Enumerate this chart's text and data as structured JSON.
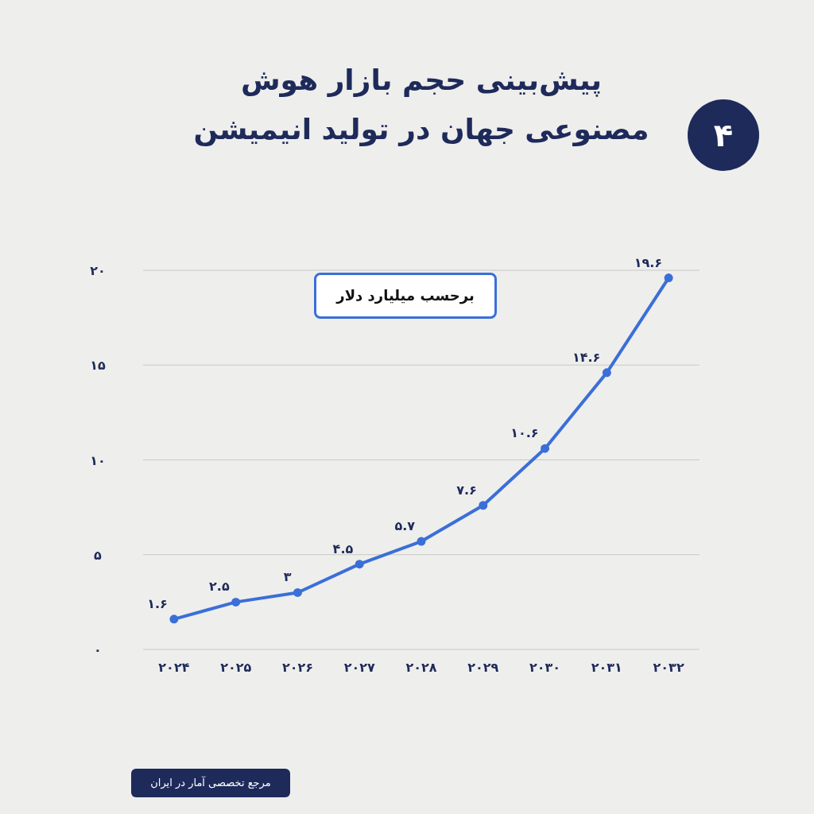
{
  "chart_data": {
    "type": "line",
    "title": "پیش‌بینی حجم بازار هوش مصنوعی جهان در تولید انیمیشن",
    "categories": [
      "۲۰۲۴",
      "۲۰۲۵",
      "۲۰۲۶",
      "۲۰۲۷",
      "۲۰۲۸",
      "۲۰۲۹",
      "۲۰۳۰",
      "۲۰۳۱",
      "۲۰۳۲"
    ],
    "values": [
      1.6,
      2.5,
      3,
      4.5,
      5.7,
      7.6,
      10.6,
      14.6,
      19.6
    ],
    "value_labels": [
      "۱.۶",
      "۲.۵",
      "۳",
      "۴.۵",
      "۵.۷",
      "۷.۶",
      "۱۰.۶",
      "۱۴.۶",
      "۱۹.۶"
    ],
    "color": "#3a6fd8",
    "marker": "circle",
    "line_style": "solid",
    "grid": "y",
    "ylim": [
      0,
      20
    ],
    "yticks": [
      {
        "value": 0,
        "label": "۰"
      },
      {
        "value": 5,
        "label": "۵"
      },
      {
        "value": 10,
        "label": "۱۰"
      },
      {
        "value": 15,
        "label": "۱۵"
      },
      {
        "value": 20,
        "label": "۲۰"
      }
    ],
    "annotations": [
      "برحسب میلیارد دلار",
      "مرجع تخصصی آمار در ایران",
      "۴"
    ]
  }
}
